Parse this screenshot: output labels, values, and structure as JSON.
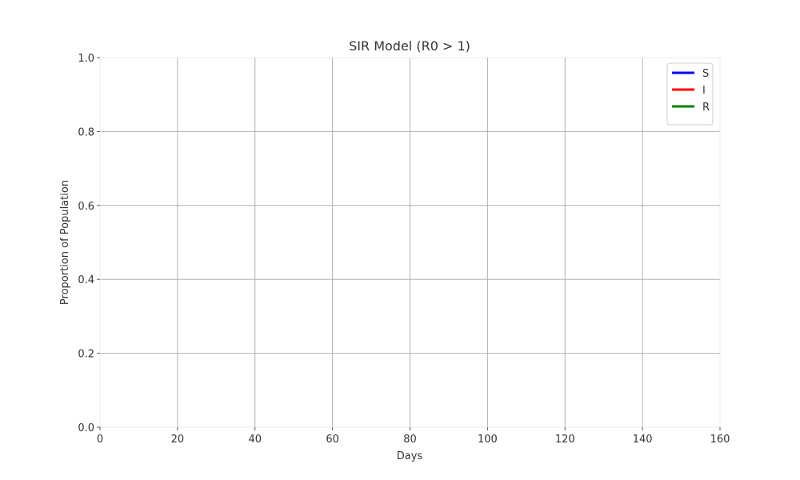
{
  "chart_data": {
    "type": "line",
    "title": "SIR Model (R0 > 1)",
    "xlabel": "Days",
    "ylabel": "Proportion of Population",
    "xlim": [
      0,
      160
    ],
    "ylim": [
      0,
      1
    ],
    "x_ticks": [
      0,
      20,
      40,
      60,
      80,
      100,
      120,
      140,
      160
    ],
    "y_ticks": [
      0.0,
      0.2,
      0.4,
      0.6,
      0.8,
      1.0
    ],
    "x_tick_labels": [
      "0",
      "20",
      "40",
      "60",
      "80",
      "100",
      "120",
      "140",
      "160"
    ],
    "y_tick_labels": [
      "0.0",
      "0.2",
      "0.4",
      "0.6",
      "0.8",
      "1.0"
    ],
    "grid": true,
    "legend_position": "top-right",
    "series": [
      {
        "name": "S",
        "color": "#0000ff",
        "x": [],
        "y": []
      },
      {
        "name": "I",
        "color": "#ff0000",
        "x": [],
        "y": []
      },
      {
        "name": "R",
        "color": "#008000",
        "x": [],
        "y": []
      }
    ]
  }
}
